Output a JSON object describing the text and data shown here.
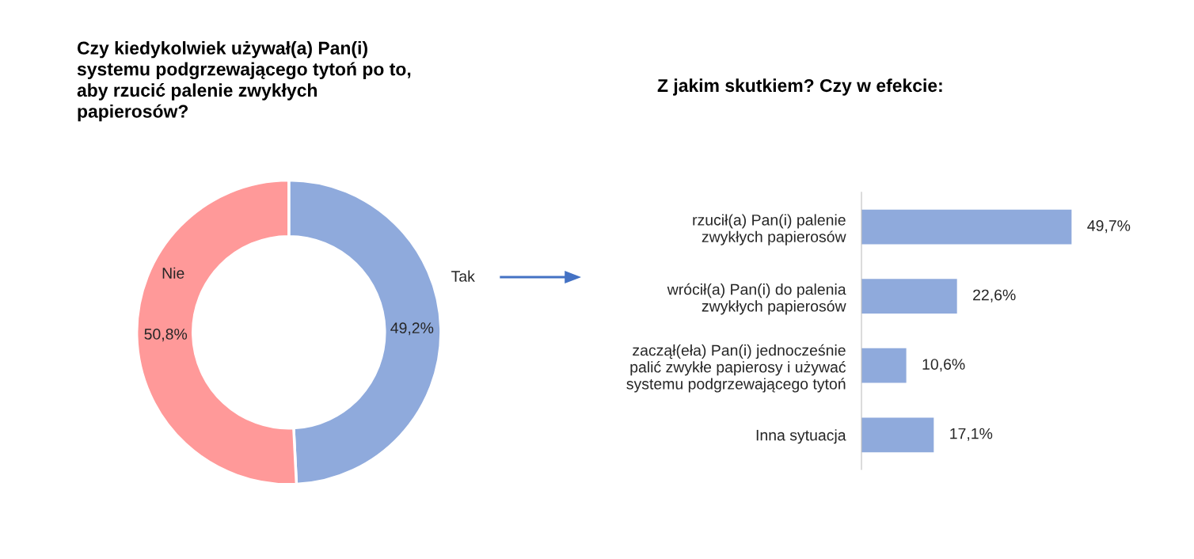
{
  "chart_data": [
    {
      "type": "donut",
      "title": "Czy kiedykolwiek używał(a) Pan(i)\nsystemu podgrzewającego tytoń po to,\naby rzucić palenie zwykłych\npapierosów?",
      "categories": [
        "Tak",
        "Nie"
      ],
      "values": [
        49.2,
        50.8
      ],
      "colors": [
        "#8faadc",
        "#ff9999"
      ],
      "value_labels": [
        "49,2%",
        "50,8%"
      ]
    },
    {
      "type": "bar",
      "orientation": "horizontal",
      "title": "Z jakim skutkiem? Czy w efekcie:",
      "categories": [
        "rzucił(a) Pan(i) palenie\nzwykłych papierosów",
        "wrócił(a) Pan(i) do palenia\nzwykłych papierosów",
        "zaczął(eła) Pan(i) jednocześnie\npalić zwykłe papierosy i używać\nsystemu podgrzewającego tytoń",
        "Inna sytuacja"
      ],
      "values": [
        49.7,
        22.6,
        10.6,
        17.1
      ],
      "color": "#8faadc",
      "value_labels": [
        "49,7%",
        "22,6%",
        "10,6%",
        "17,1%"
      ]
    }
  ]
}
